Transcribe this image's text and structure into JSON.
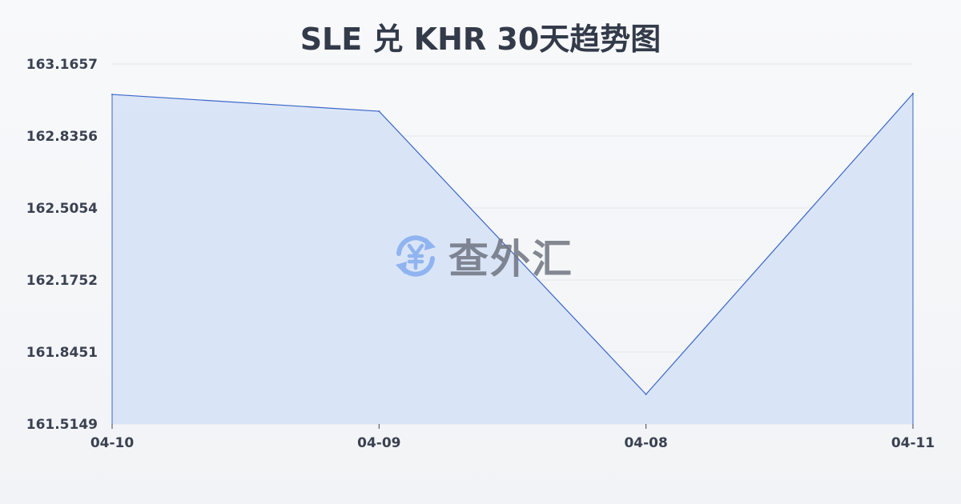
{
  "chart_data": {
    "type": "area",
    "title": "SLE 兑 KHR 30天趋势图",
    "categories": [
      "04-10",
      "04-09",
      "04-08",
      "04-11"
    ],
    "values": [
      163.026,
      162.949,
      161.651,
      163.03
    ],
    "ylim": [
      161.5149,
      163.1657
    ],
    "yticks": [
      "163.1657",
      "162.8356",
      "162.5054",
      "162.1752",
      "161.8451",
      "161.5149"
    ],
    "grid": true,
    "colors": {
      "line": "#3a66c8",
      "fill": "#d6e2f6",
      "grid": "#e3e6ec"
    }
  },
  "watermark": {
    "text": "查外汇",
    "icon": "yen-exchange-icon",
    "icon_color": "#8fb4f0"
  }
}
